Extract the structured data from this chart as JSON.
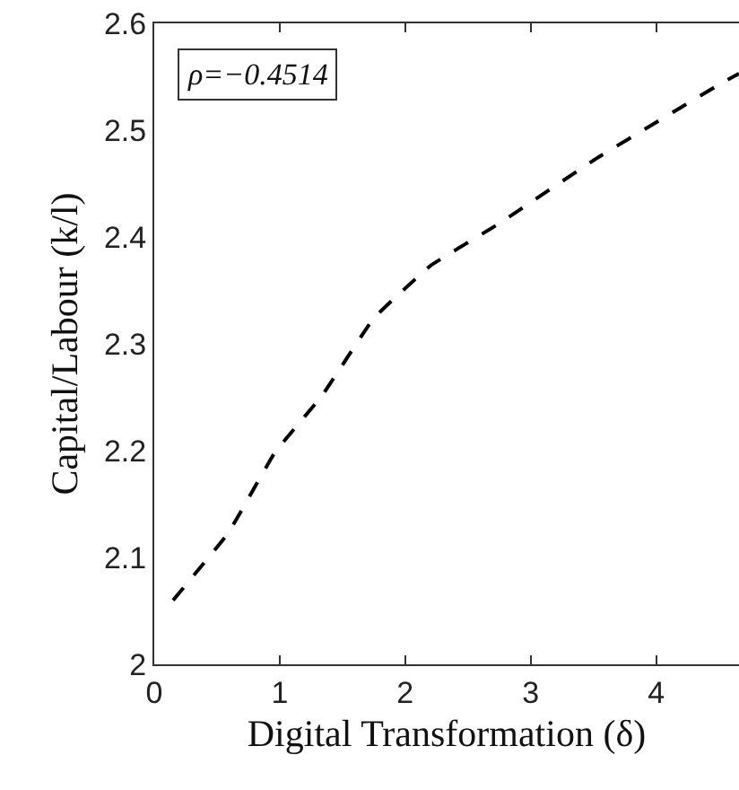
{
  "chart_data": {
    "type": "line",
    "xlabel": "Digital Transformation (δ)",
    "ylabel": "Capital/Labour (k/l)",
    "annotations": [
      "ρ=−0.4514"
    ],
    "series": [
      {
        "color": "#000000",
        "x": [
          0.15,
          0.59,
          0.96,
          1.34,
          1.75,
          2.2,
          2.74,
          3.53,
          4.55,
          4.66
        ],
        "values": [
          2.06,
          2.123,
          2.198,
          2.252,
          2.324,
          2.373,
          2.412,
          2.474,
          2.546,
          2.553
        ]
      }
    ],
    "xlim": [
      0,
      4.66
    ],
    "xticks": [
      0,
      1,
      2,
      3,
      4
    ],
    "ylim": [
      2,
      2.6
    ],
    "yticks": [
      2,
      2.1,
      2.2,
      2.3,
      2.4,
      2.5,
      2.6
    ],
    "grid": false,
    "marker": "none",
    "line_style": "dashed"
  }
}
